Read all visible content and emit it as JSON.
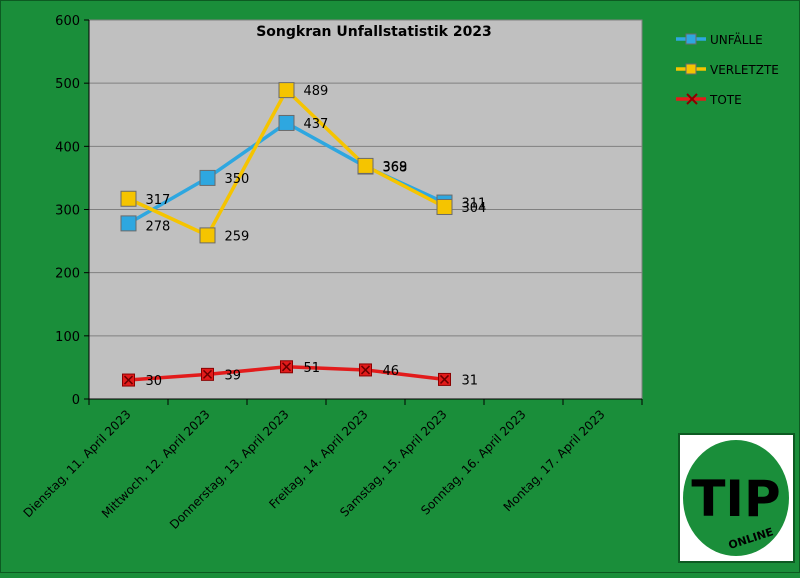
{
  "colors": {
    "background": "#1a8e3a",
    "plot_area": "#c0c0c0",
    "grid": "#808080",
    "unfaelle": "#2ea7e0",
    "verletzte": "#f5c400",
    "tote": "#e21b1b"
  },
  "logo": {
    "text": "TIP",
    "subtext": "ONLINE"
  },
  "chart_data": {
    "type": "line",
    "title": "Songkran Unfallstatistik 2023",
    "xlabel": "",
    "ylabel": "",
    "ylim": [
      0,
      600
    ],
    "yticks": [
      0,
      100,
      200,
      300,
      400,
      500,
      600
    ],
    "grid": true,
    "legend_position": "right",
    "categories": [
      "Dienstag, 11. April 2023",
      "Mittwoch, 12. April 2023",
      "Donnerstag, 13. April 2023",
      "Freitag, 14. April 2023",
      "Samstag, 15. April 2023",
      "Sonntag, 16. April 2023",
      "Montag, 17. April 2023"
    ],
    "series": [
      {
        "name": "UNFÄLLE",
        "values": [
          278,
          350,
          437,
          368,
          311,
          null,
          null
        ],
        "color": "#2ea7e0",
        "marker": "square"
      },
      {
        "name": "VERLETZTE",
        "values": [
          317,
          259,
          489,
          369,
          304,
          null,
          null
        ],
        "color": "#f5c400",
        "marker": "square"
      },
      {
        "name": "TOTE",
        "values": [
          30,
          39,
          51,
          46,
          31,
          null,
          null
        ],
        "color": "#e21b1b",
        "marker": "x"
      }
    ]
  }
}
